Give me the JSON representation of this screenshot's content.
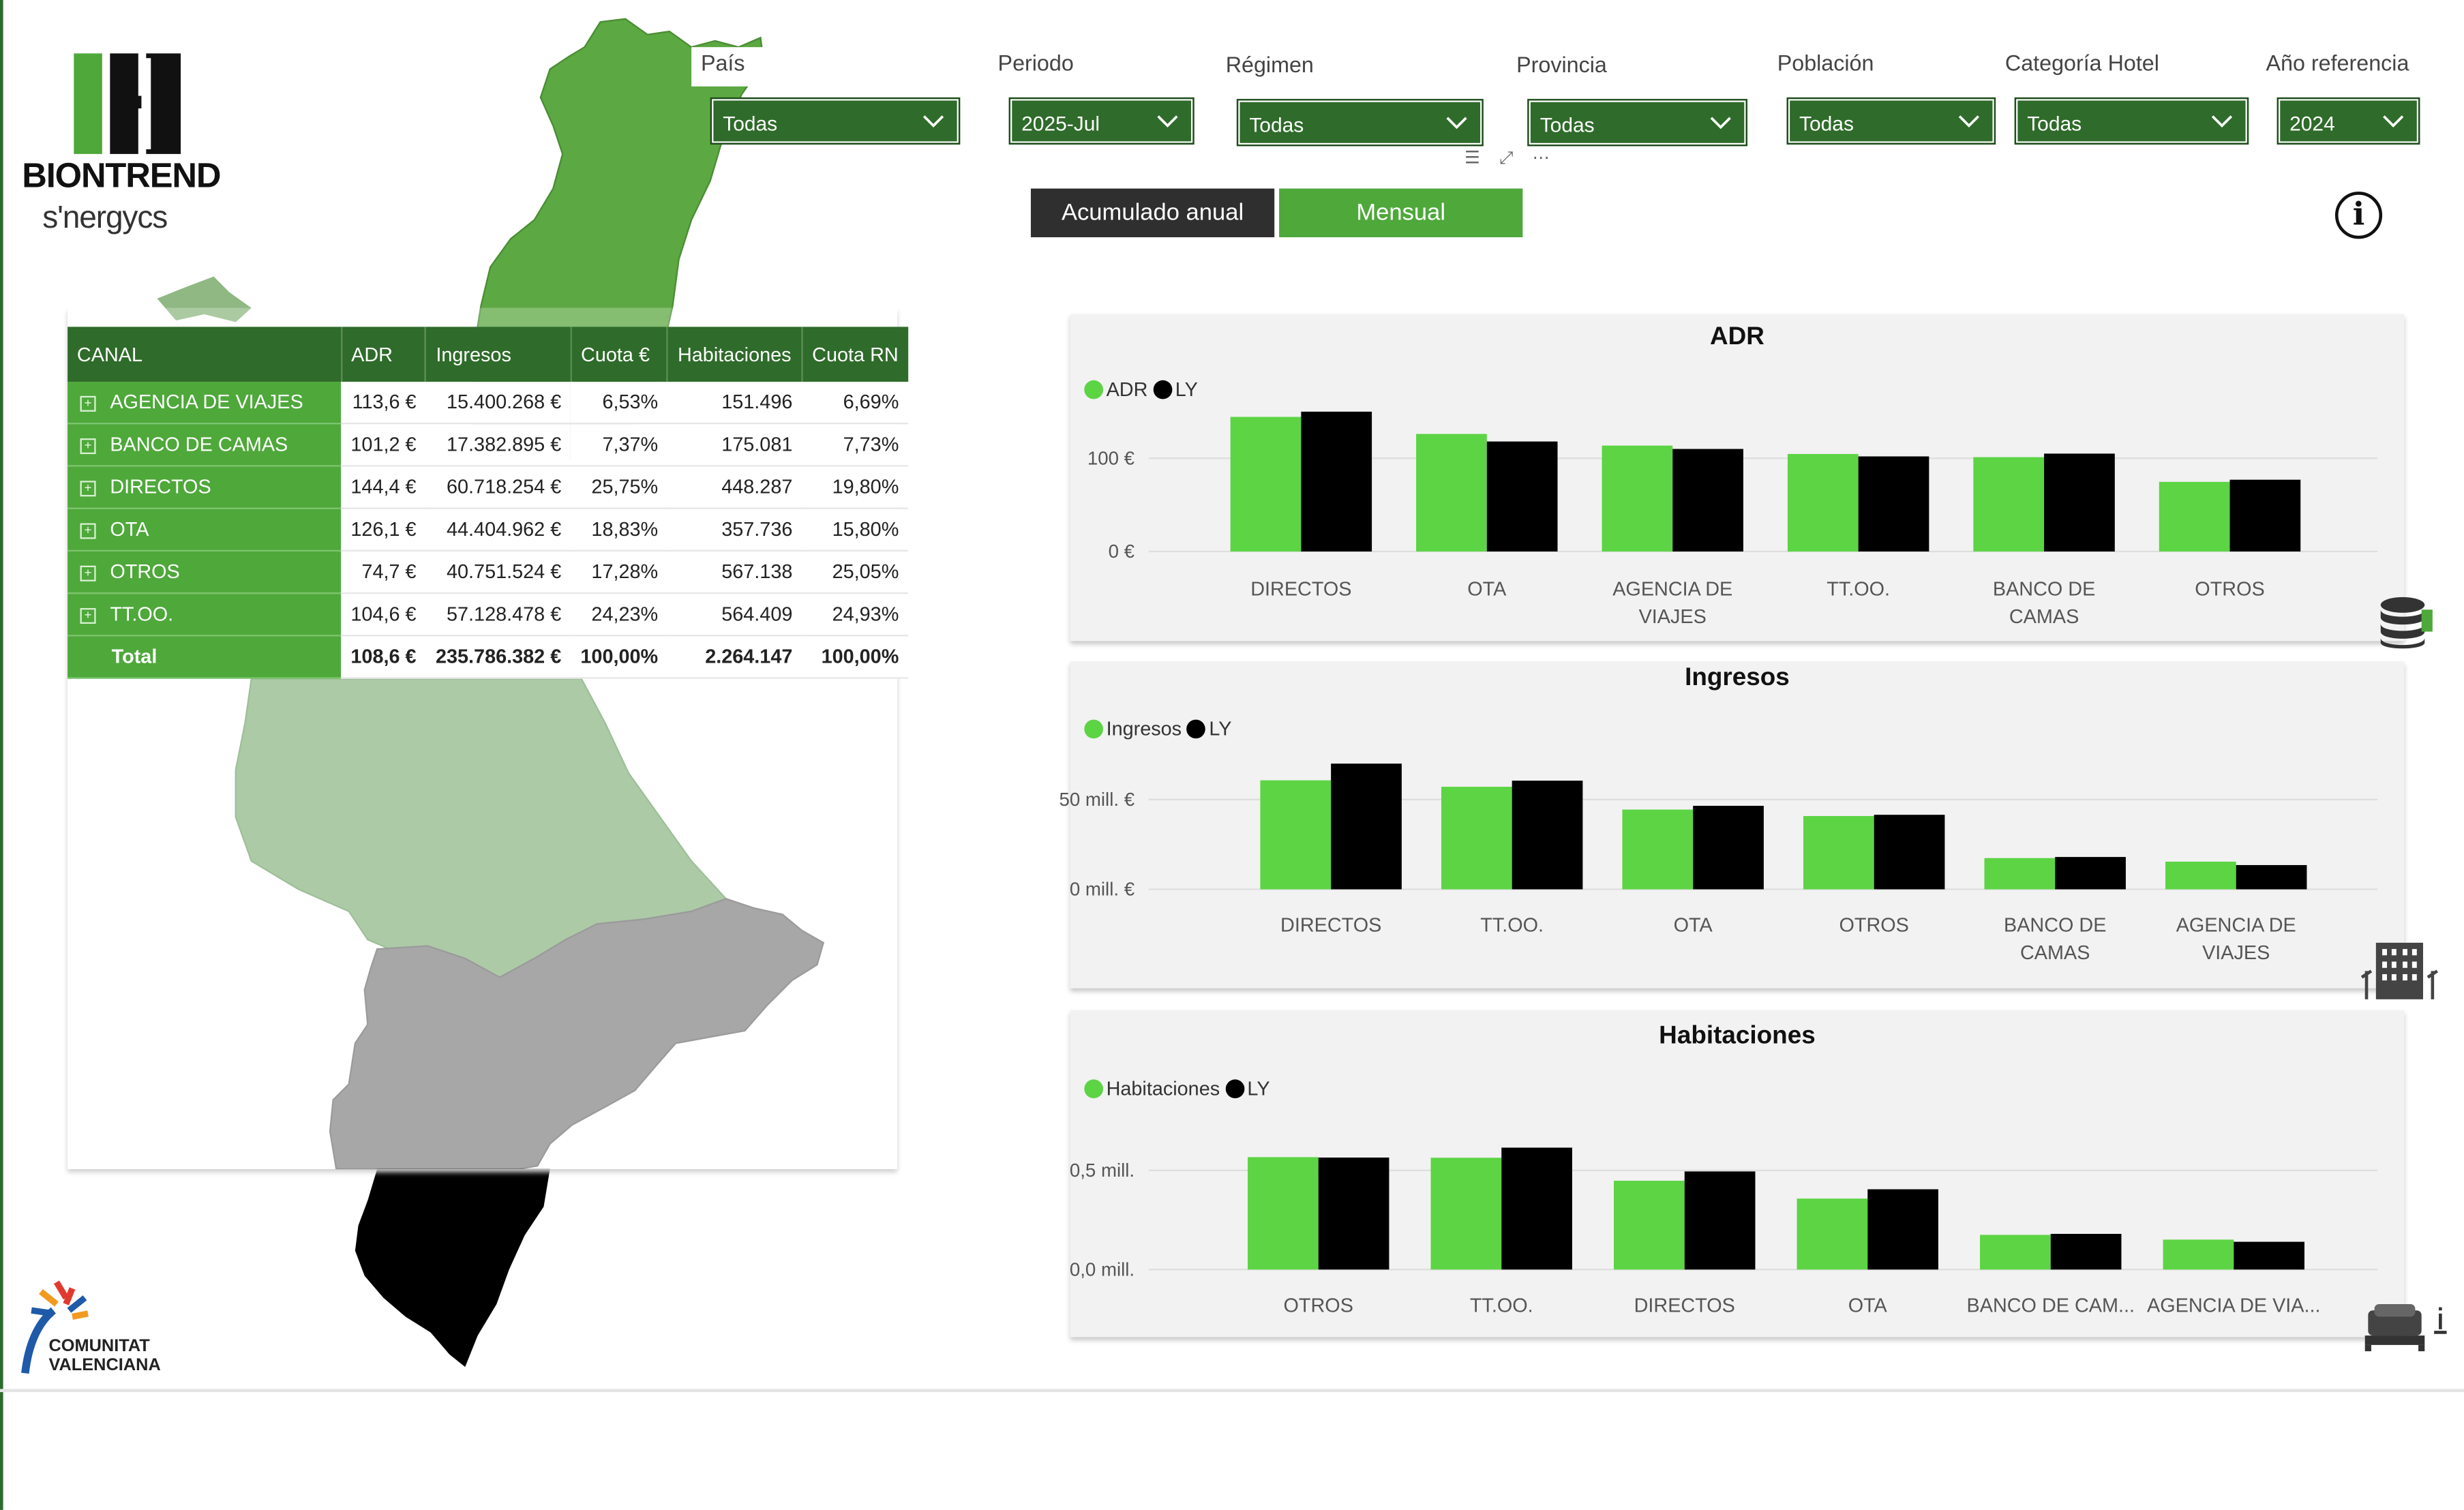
{
  "brand": {
    "name": "BIONTREND",
    "sub": "s'nergycs",
    "partner": [
      "COMUNITAT",
      "VALENCIANA"
    ]
  },
  "filters": [
    {
      "label": "País",
      "value": "Todas"
    },
    {
      "label": "Periodo",
      "value": "2025-Jul"
    },
    {
      "label": "Régimen",
      "value": "Todas"
    },
    {
      "label": "Provincia",
      "value": "Todas"
    },
    {
      "label": "Población",
      "value": "Todas"
    },
    {
      "label": "Categoría Hotel",
      "value": "Todas"
    },
    {
      "label": "Año referencia",
      "value": "2024"
    }
  ],
  "toggle": {
    "annual": "Acumulado anual",
    "monthly": "Mensual",
    "active": "monthly"
  },
  "table": {
    "headers": [
      "CANAL",
      "ADR",
      "Ingresos",
      "Cuota €",
      "Habitaciones",
      "Cuota RN"
    ],
    "rows": [
      [
        "AGENCIA DE VIAJES",
        "113,6 €",
        "15.400.268 €",
        "6,53%",
        "151.496",
        "6,69%"
      ],
      [
        "BANCO DE CAMAS",
        "101,2 €",
        "17.382.895 €",
        "7,37%",
        "175.081",
        "7,73%"
      ],
      [
        "DIRECTOS",
        "144,4 €",
        "60.718.254 €",
        "25,75%",
        "448.287",
        "19,80%"
      ],
      [
        "OTA",
        "126,1 €",
        "44.404.962 €",
        "18,83%",
        "357.736",
        "15,80%"
      ],
      [
        "OTROS",
        "74,7 €",
        "40.751.524 €",
        "17,28%",
        "567.138",
        "25,05%"
      ],
      [
        "TT.OO.",
        "104,6 €",
        "57.128.478 €",
        "24,23%",
        "564.409",
        "24,93%"
      ]
    ],
    "total": [
      "Total",
      "108,6 €",
      "235.786.382 €",
      "100,00%",
      "2.264.147",
      "100,00%"
    ]
  },
  "colors": {
    "current": "#5cd444",
    "ly": "#000000",
    "header": "#2f6b2a",
    "row": "#4ea83a"
  },
  "chart_data": [
    {
      "type": "bar",
      "title": "ADR",
      "categories": [
        [
          "DIRECTOS"
        ],
        [
          "OTA"
        ],
        [
          "AGENCIA DE",
          "VIAJES"
        ],
        [
          "TT.OO."
        ],
        [
          "BANCO DE",
          "CAMAS"
        ],
        [
          "OTROS"
        ]
      ],
      "series": [
        {
          "name": "ADR",
          "values": [
            144.4,
            126.1,
            113.6,
            104.6,
            101.2,
            74.7
          ]
        },
        {
          "name": "LY",
          "values": [
            150.0,
            118.0,
            110.0,
            102.0,
            105.0,
            77.0
          ]
        }
      ],
      "yticks": [
        {
          "v": 0,
          "label": "0 €"
        },
        {
          "v": 100,
          "label": "100 €"
        }
      ],
      "ylim": [
        0,
        150
      ]
    },
    {
      "type": "bar",
      "title": "Ingresos",
      "categories": [
        [
          "DIRECTOS"
        ],
        [
          "TT.OO."
        ],
        [
          "OTA"
        ],
        [
          "OTROS"
        ],
        [
          "BANCO DE",
          "CAMAS"
        ],
        [
          "AGENCIA DE",
          "VIAJES"
        ]
      ],
      "series": [
        {
          "name": "Ingresos",
          "values": [
            60.7,
            57.1,
            44.4,
            40.8,
            17.4,
            15.4
          ]
        },
        {
          "name": "LY",
          "values": [
            70.0,
            60.5,
            46.5,
            41.5,
            18.0,
            13.5
          ]
        }
      ],
      "yticks": [
        {
          "v": 0,
          "label": "0 mill. €"
        },
        {
          "v": 50,
          "label": "50 mill. €"
        }
      ],
      "ylim": [
        0,
        70
      ]
    },
    {
      "type": "bar",
      "title": "Habitaciones",
      "categories": [
        [
          "OTROS"
        ],
        [
          "TT.OO."
        ],
        [
          "DIRECTOS"
        ],
        [
          "OTA"
        ],
        [
          "BANCO DE CAM..."
        ],
        [
          "AGENCIA DE VIA..."
        ]
      ],
      "series": [
        {
          "name": "Habitaciones",
          "values": [
            0.567,
            0.564,
            0.448,
            0.358,
            0.175,
            0.151
          ]
        },
        {
          "name": "LY",
          "values": [
            0.565,
            0.615,
            0.495,
            0.405,
            0.18,
            0.14
          ]
        }
      ],
      "yticks": [
        {
          "v": 0,
          "label": "0,0 mill."
        },
        {
          "v": 0.5,
          "label": "0,5 mill."
        }
      ],
      "ylim": [
        0,
        0.65
      ]
    }
  ]
}
